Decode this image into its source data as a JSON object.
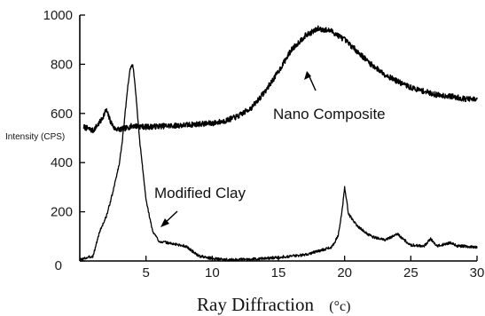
{
  "chart_data": {
    "type": "line",
    "xlabel": "Ray Diffraction",
    "xunit": "(°c)",
    "ylabel": "Intensity (CPS)",
    "xlim": [
      0,
      30
    ],
    "ylim": [
      0,
      1000
    ],
    "xticks": [
      5,
      10,
      15,
      20,
      25,
      30
    ],
    "yticks": [
      0,
      200,
      400,
      600,
      800,
      1000
    ],
    "grid": false,
    "series": [
      {
        "name": "Nano Composite",
        "x": [
          0.3,
          1,
          1.6,
          2,
          2.3,
          2.6,
          3,
          3.5,
          4,
          5,
          6,
          7,
          8,
          9,
          10,
          11,
          12,
          13,
          14,
          15,
          16,
          17,
          18,
          19,
          20,
          21,
          22,
          23,
          24,
          25,
          26,
          27,
          28,
          29,
          30
        ],
        "values": [
          545,
          530,
          570,
          615,
          570,
          540,
          535,
          540,
          550,
          545,
          548,
          550,
          553,
          557,
          560,
          570,
          590,
          625,
          690,
          770,
          860,
          915,
          945,
          935,
          900,
          850,
          800,
          760,
          730,
          705,
          690,
          675,
          670,
          660,
          655
        ]
      },
      {
        "name": "Modified Clay",
        "x": [
          0,
          1,
          1.5,
          2,
          2.5,
          3,
          3.3,
          3.6,
          3.8,
          4,
          4.2,
          4.5,
          5,
          5.5,
          6,
          7,
          8,
          9,
          10,
          11,
          12,
          13,
          14,
          15,
          16,
          17,
          18,
          19,
          19.5,
          19.8,
          20,
          20.3,
          21,
          22,
          23,
          24,
          24.5,
          25,
          26,
          26.5,
          26.8,
          27,
          28,
          28.5,
          29,
          30
        ],
        "values": [
          5,
          20,
          120,
          180,
          280,
          400,
          530,
          700,
          780,
          800,
          700,
          500,
          250,
          120,
          80,
          70,
          60,
          20,
          10,
          5,
          5,
          8,
          10,
          15,
          20,
          25,
          40,
          55,
          100,
          200,
          300,
          190,
          140,
          100,
          85,
          110,
          85,
          65,
          60,
          90,
          70,
          60,
          75,
          60,
          60,
          55
        ]
      }
    ],
    "annotations": [
      "Nano Composite",
      "Modified Clay"
    ]
  }
}
